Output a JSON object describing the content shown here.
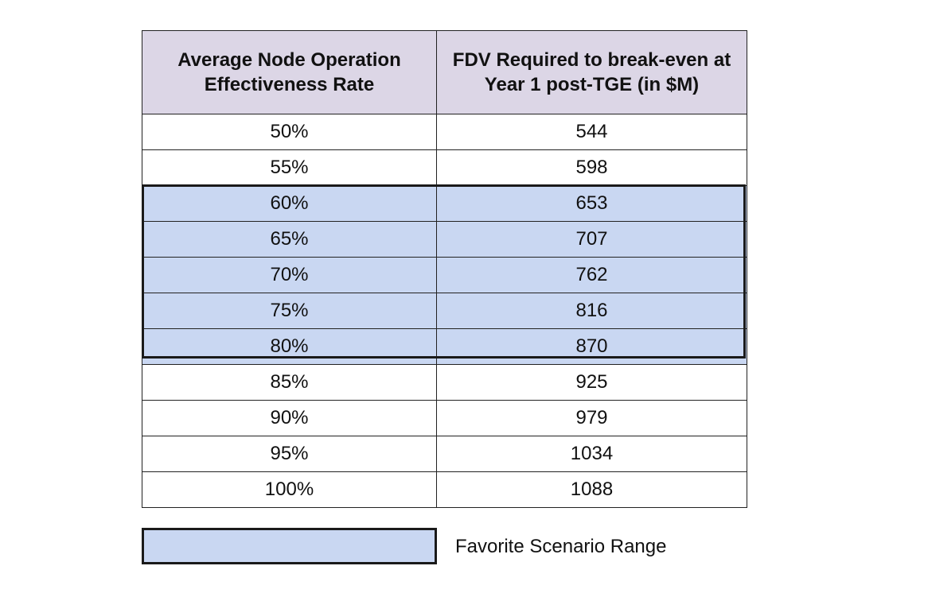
{
  "chart_data": {
    "type": "table",
    "columns": [
      "Average Node Operation Effectiveness Rate",
      "FDV Required to break-even at Year 1 post-TGE (in $M)"
    ],
    "rows": [
      {
        "rate": "50%",
        "fdv": "544",
        "favorite": false
      },
      {
        "rate": "55%",
        "fdv": "598",
        "favorite": false
      },
      {
        "rate": "60%",
        "fdv": "653",
        "favorite": true
      },
      {
        "rate": "65%",
        "fdv": "707",
        "favorite": true
      },
      {
        "rate": "70%",
        "fdv": "762",
        "favorite": true
      },
      {
        "rate": "75%",
        "fdv": "816",
        "favorite": true
      },
      {
        "rate": "80%",
        "fdv": "870",
        "favorite": true
      },
      {
        "rate": "85%",
        "fdv": "925",
        "favorite": false
      },
      {
        "rate": "90%",
        "fdv": "979",
        "favorite": false
      },
      {
        "rate": "95%",
        "fdv": "1034",
        "favorite": false
      },
      {
        "rate": "100%",
        "fdv": "1088",
        "favorite": false
      }
    ],
    "legend": {
      "label": "Favorite Scenario Range",
      "color": "#c9d7f2"
    },
    "header_color": "#dcd6e6"
  }
}
